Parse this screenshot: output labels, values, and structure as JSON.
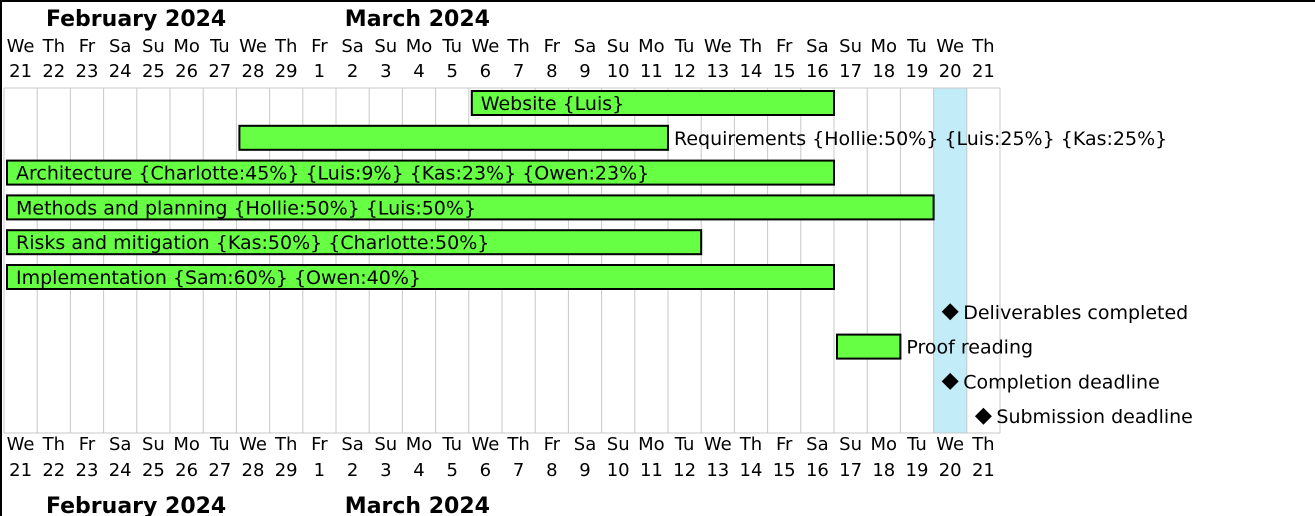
{
  "chart_data": {
    "type": "gantt",
    "months": [
      {
        "label": "February 2024",
        "start_index": 0
      },
      {
        "label": "March 2024",
        "start_index": 9
      }
    ],
    "days": [
      {
        "dow": "We",
        "num": "21"
      },
      {
        "dow": "Th",
        "num": "22"
      },
      {
        "dow": "Fr",
        "num": "23"
      },
      {
        "dow": "Sa",
        "num": "24"
      },
      {
        "dow": "Su",
        "num": "25"
      },
      {
        "dow": "Mo",
        "num": "26"
      },
      {
        "dow": "Tu",
        "num": "27"
      },
      {
        "dow": "We",
        "num": "28"
      },
      {
        "dow": "Th",
        "num": "29"
      },
      {
        "dow": "Fr",
        "num": "1"
      },
      {
        "dow": "Sa",
        "num": "2"
      },
      {
        "dow": "Su",
        "num": "3"
      },
      {
        "dow": "Mo",
        "num": "4"
      },
      {
        "dow": "Tu",
        "num": "5"
      },
      {
        "dow": "We",
        "num": "6"
      },
      {
        "dow": "Th",
        "num": "7"
      },
      {
        "dow": "Fr",
        "num": "8"
      },
      {
        "dow": "Sa",
        "num": "9"
      },
      {
        "dow": "Su",
        "num": "10"
      },
      {
        "dow": "Mo",
        "num": "11"
      },
      {
        "dow": "Tu",
        "num": "12"
      },
      {
        "dow": "We",
        "num": "13"
      },
      {
        "dow": "Th",
        "num": "14"
      },
      {
        "dow": "Fr",
        "num": "15"
      },
      {
        "dow": "Sa",
        "num": "16"
      },
      {
        "dow": "Su",
        "num": "17"
      },
      {
        "dow": "Mo",
        "num": "18"
      },
      {
        "dow": "Tu",
        "num": "19"
      },
      {
        "dow": "We",
        "num": "20"
      },
      {
        "dow": "Th",
        "num": "21"
      }
    ],
    "highlight_day_index": 28,
    "tasks": [
      {
        "name": "Website {Luis}",
        "start": 14,
        "end": 25,
        "type": "bar",
        "label_inside": true
      },
      {
        "name": "Requirements {Hollie:50%} {Luis:25%} {Kas:25%}",
        "start": 7,
        "end": 20,
        "type": "bar",
        "label_inside": false
      },
      {
        "name": "Architecture {Charlotte:45%} {Luis:9%} {Kas:23%} {Owen:23%}",
        "start": 0,
        "end": 25,
        "type": "bar",
        "label_inside": true
      },
      {
        "name": "Methods and planning {Hollie:50%} {Luis:50%}",
        "start": 0,
        "end": 28,
        "type": "bar",
        "label_inside": true
      },
      {
        "name": "Risks and mitigation {Kas:50%} {Charlotte:50%}",
        "start": 0,
        "end": 21,
        "type": "bar",
        "label_inside": true
      },
      {
        "name": "Implementation {Sam:60%} {Owen:40%}",
        "start": 0,
        "end": 25,
        "type": "bar",
        "label_inside": true
      },
      {
        "name": "Deliverables completed",
        "start": 28,
        "type": "milestone"
      },
      {
        "name": "Proof reading",
        "start": 25,
        "end": 27,
        "type": "bar",
        "label_inside": false
      },
      {
        "name": "Completion deadline",
        "start": 28,
        "type": "milestone"
      },
      {
        "name": "Submission deadline",
        "start": 29,
        "type": "milestone"
      }
    ],
    "colors": {
      "bar_fill": "#66ff44",
      "bar_stroke": "#000000",
      "highlight": "#c2ecf7",
      "grid": "#c8c8c8",
      "milestone": "#000000"
    }
  }
}
